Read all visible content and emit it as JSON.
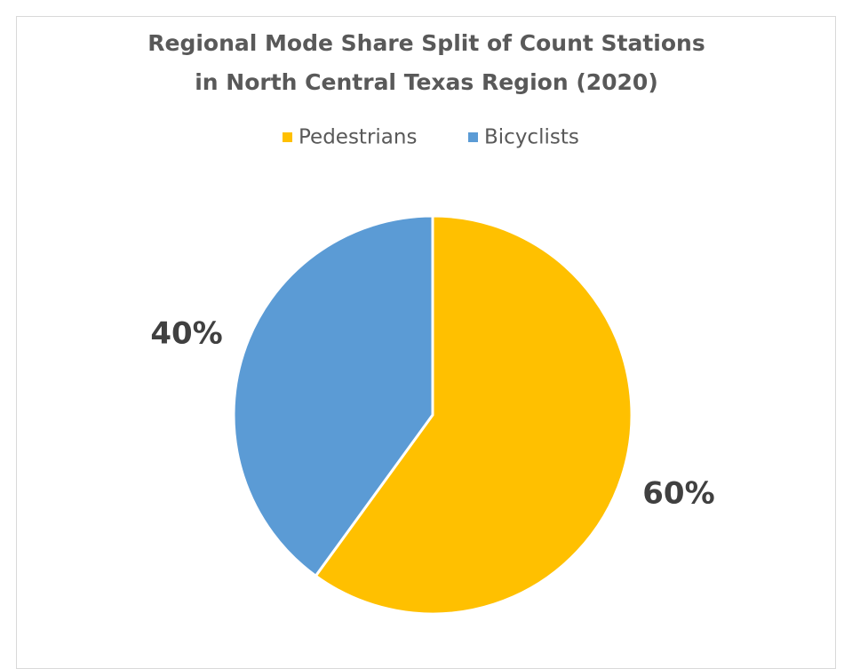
{
  "chart_data": {
    "type": "pie",
    "title": [
      "Regional Mode Share Split of Count Stations",
      "in North Central Texas Region (2020)"
    ],
    "categories": [
      "Pedestrians",
      "Bicyclists"
    ],
    "values": [
      60,
      40
    ],
    "value_labels": [
      "60%",
      "40%"
    ],
    "colors": [
      "#ffc000",
      "#5b9bd5"
    ],
    "legend": "top"
  }
}
